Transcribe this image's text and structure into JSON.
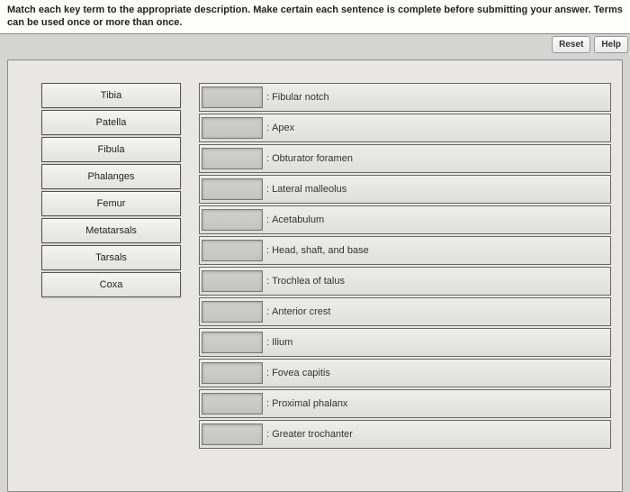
{
  "instructions": "Match each key term to the appropriate description. Make certain each sentence is complete before submitting your answer. Terms can be used once or more than once.",
  "toolbar": {
    "reset_label": "Reset",
    "help_label": "Help"
  },
  "terms": [
    "Tibia",
    "Patella",
    "Fibula",
    "Phalanges",
    "Femur",
    "Metatarsals",
    "Tarsals",
    "Coxa"
  ],
  "descriptions": [
    "Fibular notch",
    "Apex",
    "Obturator foramen",
    "Lateral malleolus",
    "Acetabulum",
    "Head, shaft, and base",
    "Trochlea of talus",
    "Anterior crest",
    "Ilium",
    "Fovea capitis",
    "Proximal phalanx",
    "Greater trochanter"
  ]
}
